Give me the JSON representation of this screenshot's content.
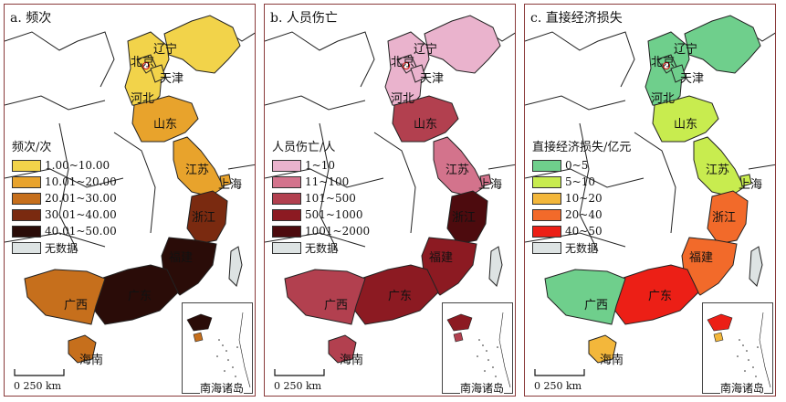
{
  "panels": [
    {
      "title": "a. 频次",
      "legend_title": "频次/次",
      "legend": [
        {
          "label": "1.00~10.00",
          "color": "#f2d34a"
        },
        {
          "label": "10.01~20.00",
          "color": "#e8a32c"
        },
        {
          "label": "20.01~30.00",
          "color": "#c66f1c"
        },
        {
          "label": "30.01~40.00",
          "color": "#7a2a10"
        },
        {
          "label": "40.01~50.00",
          "color": "#2a0c08"
        },
        {
          "label": "无数据",
          "color": "#dde3e3"
        }
      ],
      "provinces": {
        "liaoning": "#f2d34a",
        "beijing": "#f2d34a",
        "tianjin": "#f2d34a",
        "hebei": "#f2d34a",
        "shandong": "#e8a32c",
        "jiangsu": "#e8a32c",
        "shanghai": "#e8a32c",
        "zhejiang": "#7a2a10",
        "fujian": "#2a0c08",
        "guangdong": "#2a0c08",
        "guangxi": "#c66f1c",
        "hainan": "#c66f1c",
        "taiwan": "#dde3e3"
      }
    },
    {
      "title": "b. 人员伤亡",
      "legend_title": "人员伤亡/人",
      "legend": [
        {
          "label": "1~10",
          "color": "#eab3cd"
        },
        {
          "label": "11~100",
          "color": "#d3738c"
        },
        {
          "label": "101~500",
          "color": "#b2404f"
        },
        {
          "label": "501~1000",
          "color": "#8c1a22"
        },
        {
          "label": "1001~2000",
          "color": "#4d0b0e"
        },
        {
          "label": "无数据",
          "color": "#dde3e3"
        }
      ],
      "provinces": {
        "liaoning": "#eab3cd",
        "beijing": "#eab3cd",
        "tianjin": "#eab3cd",
        "hebei": "#eab3cd",
        "shandong": "#b2404f",
        "jiangsu": "#d3738c",
        "shanghai": "#d3738c",
        "zhejiang": "#4d0b0e",
        "fujian": "#8c1a22",
        "guangdong": "#8c1a22",
        "guangxi": "#b2404f",
        "hainan": "#b2404f",
        "taiwan": "#dde3e3"
      }
    },
    {
      "title": "c. 直接经济损失",
      "legend_title": "直接经济损失/亿元",
      "legend": [
        {
          "label": "0~5",
          "color": "#6fcf8c"
        },
        {
          "label": "5~10",
          "color": "#c8ec4f"
        },
        {
          "label": "10~20",
          "color": "#f3b73b"
        },
        {
          "label": "20~40",
          "color": "#f26a2a"
        },
        {
          "label": "40~50",
          "color": "#ec1f16"
        },
        {
          "label": "无数据",
          "color": "#dde3e3"
        }
      ],
      "provinces": {
        "liaoning": "#6fcf8c",
        "beijing": "#6fcf8c",
        "tianjin": "#6fcf8c",
        "hebei": "#6fcf8c",
        "shandong": "#c8ec4f",
        "jiangsu": "#c8ec4f",
        "shanghai": "#c8ec4f",
        "zhejiang": "#f26a2a",
        "fujian": "#f26a2a",
        "guangdong": "#ec1f16",
        "guangxi": "#6fcf8c",
        "hainan": "#f3b73b",
        "taiwan": "#dde3e3"
      }
    }
  ],
  "province_labels": {
    "liaoning": "辽宁",
    "beijing": "北京",
    "tianjin": "天津",
    "hebei": "河北",
    "shandong": "山东",
    "jiangsu": "江苏",
    "shanghai": "上海",
    "zhejiang": "浙江",
    "fujian": "福建",
    "guangdong": "广东",
    "guangxi": "广西",
    "hainan": "海南"
  },
  "scale_label": "0  250 km",
  "inset_label": "南海诸岛"
}
